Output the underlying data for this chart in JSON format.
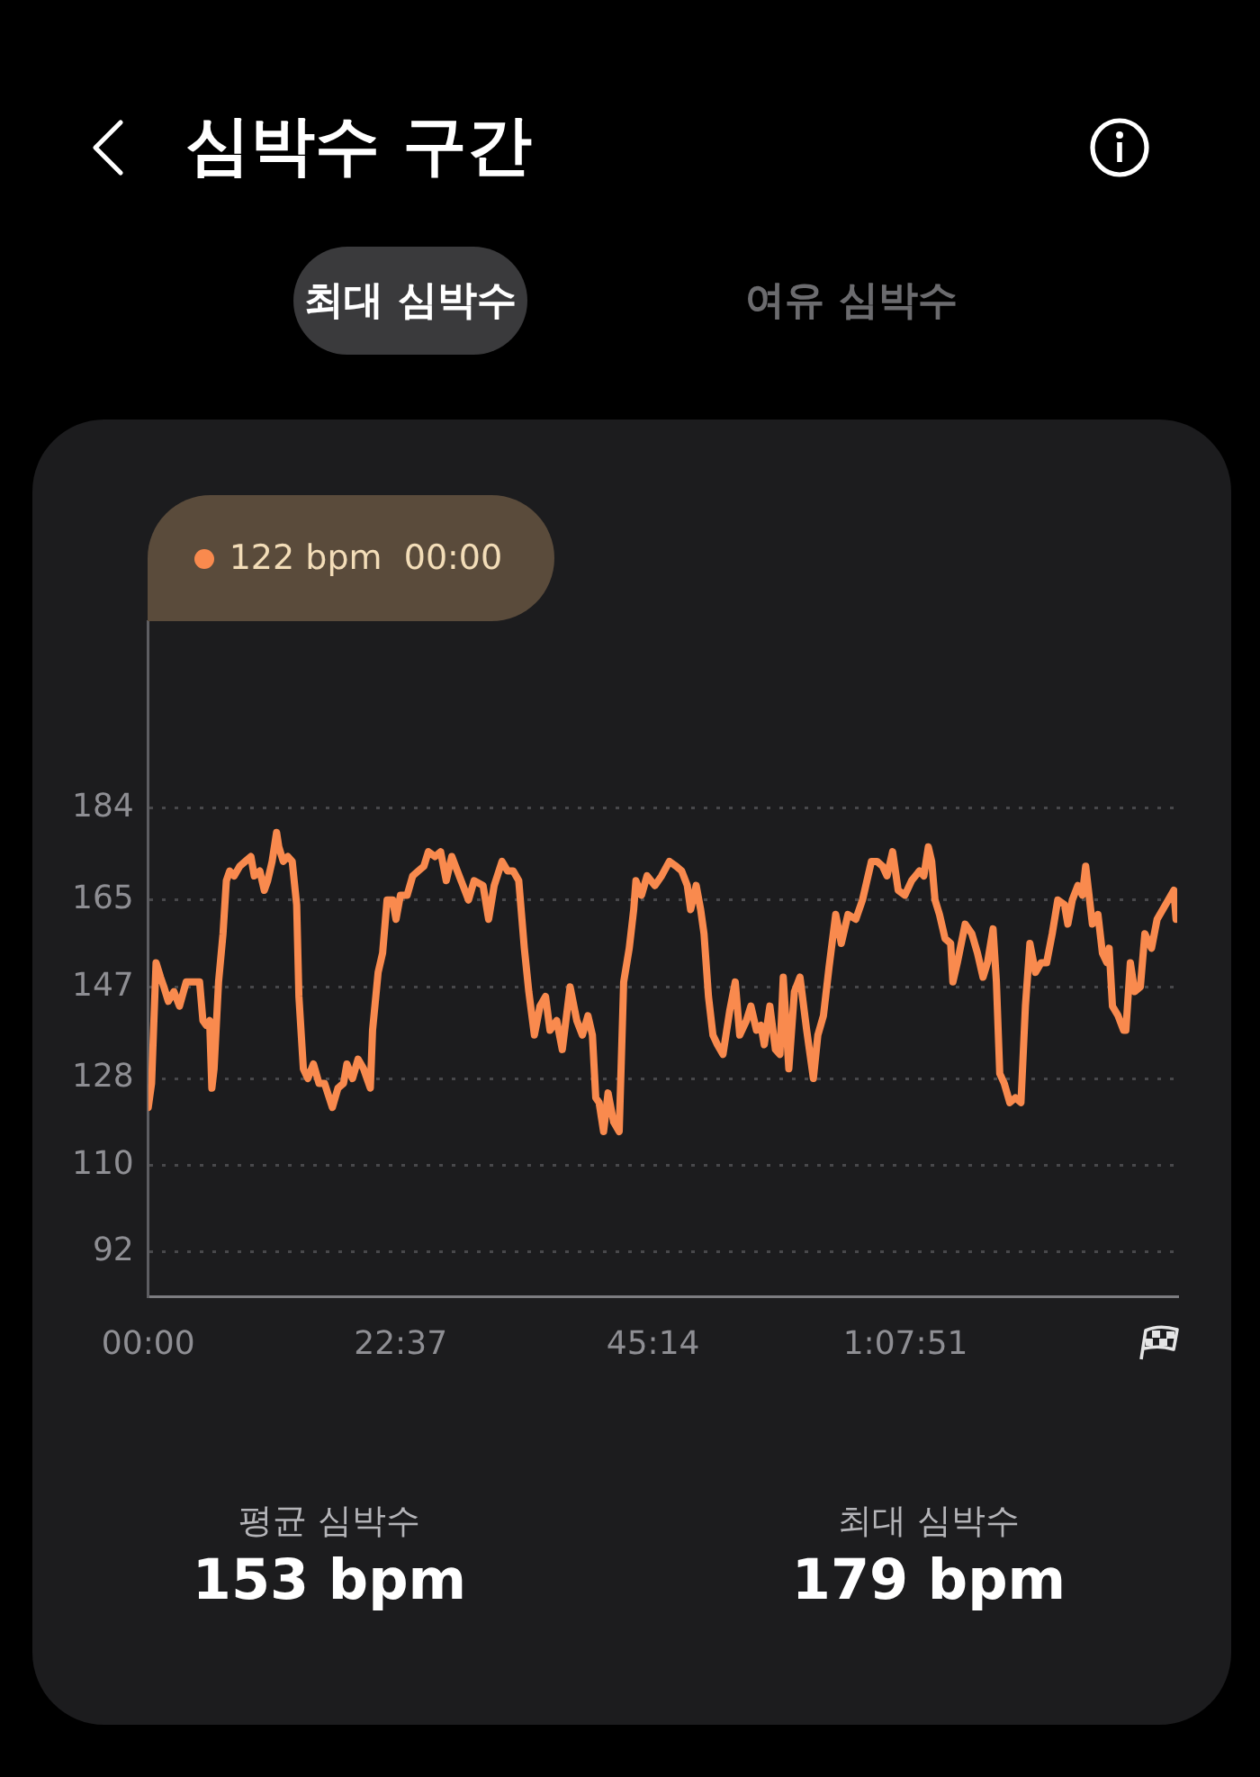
{
  "chart_data": {
    "type": "line",
    "title": "심박수 구간",
    "annotations": [
      "최대 심박수",
      "여유 심박수",
      "평균 심박수",
      "153 bpm",
      "최대 심박수",
      "179 bpm",
      "122 bpm  00:00"
    ],
    "x": [
      0,
      0.3,
      0.7,
      1.1,
      1.4,
      1.8,
      2.3,
      2.8,
      3.4,
      4.1,
      4.6,
      4.9,
      5.2,
      5.5,
      5.7,
      5.9,
      6.3,
      6.7,
      7.0,
      7.3,
      7.7,
      8.2,
      8.7,
      9.2,
      9.5,
      10.0,
      10.4,
      10.7,
      11.1,
      11.5,
      11.7,
      12.1,
      12.5,
      12.9,
      13.3,
      13.5,
      13.9,
      14.3,
      14.8,
      15.3,
      15.8,
      16.5,
      17.0,
      17.5,
      17.8,
      18.3,
      18.8,
      19.3,
      19.9,
      20.1,
      20.6,
      21.0,
      21.4,
      21.9,
      22.2,
      22.6,
      23.2,
      23.7,
      24.2,
      24.7,
      25.1,
      25.7,
      26.2,
      26.7,
      27.2,
      27.7,
      28.2,
      28.7,
      29.2,
      30.0,
      30.5,
      31.0,
      31.7,
      32.2,
      32.7,
      33.2,
      33.7,
      34.1,
      34.6,
      35.1,
      35.6,
      36.0,
      36.6,
      37.1,
      37.8,
      38.4,
      38.9,
      39.4,
      39.8,
      40.1,
      40.4,
      40.8,
      41.2,
      41.7,
      42.2,
      42.6,
      43.1,
      43.5,
      43.7,
      44.2,
      44.7,
      45.4,
      46.0,
      46.7,
      47.3,
      47.8,
      48.3,
      48.6,
      49.1,
      49.5,
      49.8,
      50.2,
      50.6,
      51.0,
      51.5,
      52.1,
      52.6,
      53.0,
      53.6,
      54.0,
      54.5,
      54.9,
      55.2,
      55.7,
      56.2,
      56.6,
      56.9,
      57.4,
      57.9,
      58.4,
      59.0,
      59.6,
      60.0,
      60.5,
      61.0,
      61.6,
      62.1,
      62.7,
      63.4,
      64.0,
      64.8,
      65.3,
      65.8,
      66.2,
      66.7,
      67.2,
      67.8,
      68.4,
      69.1,
      69.5,
      69.9,
      70.2,
      70.5,
      70.9,
      71.4,
      71.9,
      72.1,
      72.5,
      73.2,
      73.8,
      74.3,
      74.8,
      75.2,
      75.7,
      76.0,
      76.3,
      76.7,
      77.2,
      77.7,
      78.2,
      78.6,
      79.0,
      79.5,
      80.0,
      80.5,
      81.0,
      81.5,
      82.1,
      82.4,
      82.8,
      83.3,
      83.7,
      84.0,
      84.3,
      84.6,
      85.1,
      85.5,
      85.9,
      86.1,
      86.4,
      86.9,
      87.4,
      87.6,
      88.0,
      88.4,
      88.9,
      89.3,
      89.9,
      90.4,
      90.9,
      91.4,
      91.9,
      92.1
    ],
    "values": [
      122,
      127,
      152,
      149,
      147,
      144,
      146,
      143,
      148,
      148,
      148,
      140,
      139,
      140,
      126,
      130,
      148,
      158,
      169,
      171,
      170,
      172,
      173,
      174,
      170,
      171,
      167,
      169,
      173,
      179,
      176,
      173,
      174,
      173,
      164,
      145,
      130,
      128,
      131,
      127,
      127,
      122,
      126,
      127,
      131,
      128,
      132,
      130,
      126,
      138,
      150,
      154,
      165,
      165,
      161,
      166,
      166,
      170,
      171,
      172,
      175,
      174,
      175,
      169,
      174,
      171,
      168,
      165,
      169,
      168,
      161,
      168,
      173,
      171,
      171,
      169,
      155,
      146,
      137,
      143,
      145,
      138,
      140,
      134,
      147,
      140,
      137,
      141,
      137,
      124,
      123,
      117,
      125,
      119,
      117,
      148,
      155,
      163,
      169,
      166,
      170,
      168,
      170,
      173,
      172,
      171,
      168,
      163,
      168,
      163,
      158,
      145,
      137,
      135,
      133,
      142,
      148,
      137,
      140,
      143,
      138,
      139,
      135,
      143,
      134,
      133,
      149,
      130,
      146,
      149,
      138,
      128,
      137,
      141,
      151,
      162,
      156,
      162,
      161,
      165,
      173,
      173,
      172,
      170,
      175,
      167,
      166,
      169,
      171,
      170,
      176,
      173,
      165,
      162,
      157,
      156,
      148,
      152,
      160,
      158,
      154,
      149,
      152,
      159,
      148,
      129,
      127,
      123,
      124,
      123,
      143,
      156,
      150,
      152,
      152,
      158,
      165,
      164,
      160,
      165,
      168,
      166,
      172,
      166,
      160,
      162,
      154,
      152,
      155,
      143,
      141,
      138,
      138,
      152,
      146,
      147,
      158,
      155,
      161,
      163,
      165,
      167,
      161
    ],
    "color": "#f98a4e",
    "xlim": [
      0,
      92.2
    ],
    "xticks": [
      {
        "value": 0,
        "label": "00:00"
      },
      {
        "value": 22.617,
        "label": "22:37"
      },
      {
        "value": 45.233,
        "label": "45:14"
      },
      {
        "value": 67.85,
        "label": "1:07:51"
      }
    ],
    "ylim": [
      82.7,
      222.8
    ],
    "yticks": [
      92,
      110,
      128,
      147,
      165,
      184
    ],
    "grid": "y",
    "marker": "none",
    "line_style": "solid"
  }
}
